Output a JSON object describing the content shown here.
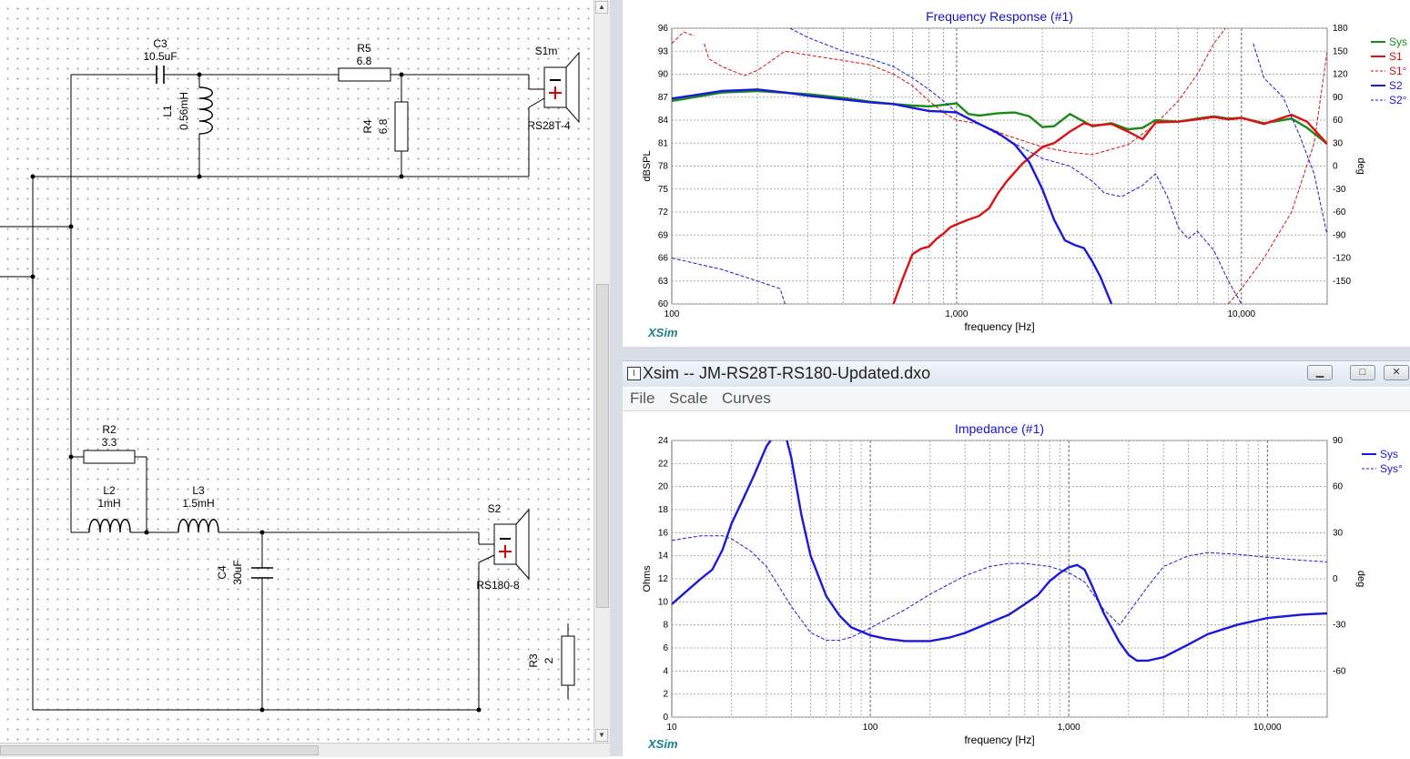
{
  "schematic": {
    "components": [
      {
        "ref": "C3",
        "value": "10.5uF"
      },
      {
        "ref": "L1",
        "value": "0.56mH"
      },
      {
        "ref": "R5",
        "value": "6.8"
      },
      {
        "ref": "R4",
        "value": "6.8"
      },
      {
        "ref": "S1m",
        "value": "RS28T-4"
      },
      {
        "ref": "R2",
        "value": "3.3"
      },
      {
        "ref": "L2",
        "value": "1mH"
      },
      {
        "ref": "L3",
        "value": "1.5mH"
      },
      {
        "ref": "C4",
        "value": "30uF"
      },
      {
        "ref": "S2",
        "value": "RS180-8"
      },
      {
        "ref": "R3",
        "value": "2"
      }
    ],
    "scroll_up_glyph": "▲",
    "scroll_down_glyph": "▼"
  },
  "frequency_window": {
    "title": "Frequency Response (#1)",
    "watermark": "XSim",
    "chart_data": {
      "type": "line",
      "title": "Frequency Response (#1)",
      "xlabel": "frequency [Hz]",
      "ylabel": "dBSPL",
      "y2label": "deg",
      "x_scale": "log",
      "xlim": [
        100,
        20000
      ],
      "ylim": [
        60,
        96
      ],
      "y2lim": [
        -180,
        180
      ],
      "x_tick_labels": [
        "100",
        "1,000",
        "10,000"
      ],
      "y_ticks": [
        60,
        63,
        66,
        69,
        72,
        75,
        78,
        81,
        84,
        87,
        90,
        93,
        96
      ],
      "y2_ticks": [
        -150,
        -120,
        -90,
        -60,
        -30,
        0,
        30,
        60,
        90,
        120,
        150,
        180
      ],
      "grid": true,
      "legend_position": "right",
      "series": [
        {
          "name": "Sys",
          "axis": "left",
          "color": "#1a8a1a",
          "style": "solid",
          "x": [
            100,
            150,
            200,
            300,
            400,
            500,
            600,
            700,
            800,
            900,
            1000,
            1100,
            1200,
            1400,
            1600,
            1800,
            2000,
            2200,
            2500,
            2800,
            3000,
            3500,
            4000,
            4500,
            5000,
            6000,
            7000,
            8000,
            9000,
            10000,
            12000,
            15000,
            17000,
            20000
          ],
          "y": [
            86.5,
            87.6,
            87.8,
            87.4,
            86.9,
            86.4,
            86.1,
            85.9,
            85.8,
            86.0,
            86.2,
            84.8,
            84.6,
            84.9,
            85.0,
            84.5,
            83.1,
            83.2,
            84.8,
            83.8,
            83.2,
            83.6,
            82.8,
            83.0,
            84.0,
            83.8,
            84.2,
            84.5,
            84.2,
            84.3,
            83.6,
            84.2,
            83.0,
            80.9
          ]
        },
        {
          "name": "S1",
          "axis": "left",
          "color": "#dd1111",
          "style": "solid",
          "x": [
            600,
            650,
            700,
            750,
            800,
            850,
            900,
            950,
            1000,
            1100,
            1200,
            1300,
            1400,
            1500,
            1700,
            1900,
            2000,
            2200,
            2500,
            2800,
            3000,
            3500,
            4000,
            4500,
            5000,
            6000,
            7000,
            8000,
            9000,
            10000,
            12000,
            15000,
            17000,
            20000
          ],
          "y": [
            60.0,
            63.5,
            66.5,
            67.2,
            67.5,
            68.5,
            69.2,
            70.0,
            70.4,
            71.0,
            71.5,
            72.5,
            74.5,
            76.0,
            78.3,
            79.8,
            80.5,
            81.0,
            82.5,
            83.6,
            83.3,
            83.5,
            82.5,
            81.5,
            83.7,
            83.8,
            84.1,
            84.4,
            84.1,
            84.3,
            83.5,
            84.7,
            83.8,
            80.9
          ]
        },
        {
          "name": "S1°",
          "axis": "right",
          "color": "#dd1111",
          "style": "dashed",
          "x": [
            100,
            110,
            120,
            125,
            130,
            135,
            150,
            180,
            200,
            250,
            300,
            400,
            500,
            600,
            700,
            800,
            900,
            1000,
            1200,
            1500,
            2000,
            2500,
            3000,
            4000,
            5000,
            6000,
            7000,
            8000,
            8800,
            9000,
            10000,
            12000,
            15000,
            18000,
            20000
          ],
          "y": [
            160,
            175,
            170,
            -180,
            160,
            140,
            130,
            118,
            125,
            150,
            145,
            138,
            132,
            120,
            105,
            85,
            70,
            60,
            55,
            40,
            25,
            18,
            15,
            28,
            55,
            85,
            120,
            160,
            180,
            -180,
            -160,
            -120,
            -60,
            30,
            150
          ]
        },
        {
          "name": "S2",
          "axis": "left",
          "color": "#1a1ad8",
          "style": "solid",
          "x": [
            100,
            150,
            200,
            250,
            300,
            400,
            500,
            600,
            700,
            800,
            900,
            1000,
            1200,
            1400,
            1600,
            1800,
            2000,
            2200,
            2400,
            2600,
            2800,
            3000,
            3200,
            3500
          ],
          "y": [
            86.8,
            87.8,
            88.0,
            87.6,
            87.2,
            86.7,
            86.3,
            86.1,
            85.6,
            85.2,
            85.1,
            85.0,
            83.5,
            82.3,
            80.8,
            78.5,
            75.0,
            71.0,
            68.3,
            67.7,
            67.3,
            65.5,
            63.5,
            60.0
          ]
        },
        {
          "name": "S2°",
          "axis": "right",
          "color": "#1a1ad8",
          "style": "dashed",
          "x": [
            100,
            150,
            200,
            240,
            250,
            260,
            300,
            400,
            500,
            600,
            700,
            800,
            900,
            1000,
            1200,
            1500,
            2000,
            2500,
            3000,
            3300,
            3800,
            4500,
            5000,
            5500,
            6000,
            6500,
            7000,
            8000,
            9000,
            10000,
            11000,
            12000,
            14000,
            16000,
            18000,
            20000
          ],
          "y": [
            -120,
            -135,
            -150,
            -160,
            -180,
            180,
            168,
            150,
            140,
            130,
            115,
            100,
            85,
            70,
            55,
            35,
            10,
            0,
            -20,
            -35,
            -40,
            -25,
            -10,
            -40,
            -80,
            -95,
            -85,
            -110,
            -150,
            -180,
            160,
            115,
            90,
            40,
            -10,
            -90
          ]
        }
      ]
    }
  },
  "impedance_window": {
    "window_title": "Xsim -- JM-RS28T-RS180-Updated.dxo",
    "app_icon": "xsim-app-icon",
    "menu": [
      "File",
      "Scale",
      "Curves"
    ],
    "controls": {
      "minimize": "▁",
      "maximize": "□",
      "close": "✕"
    },
    "title": "Impedance (#1)",
    "watermark": "XSim",
    "chart_data": {
      "type": "line",
      "title": "Impedance (#1)",
      "xlabel": "frequency [Hz]",
      "ylabel": "Ohms",
      "y2label": "deg",
      "x_scale": "log",
      "xlim": [
        10,
        20000
      ],
      "ylim": [
        0,
        24
      ],
      "y2lim": [
        -90,
        90
      ],
      "x_tick_labels": [
        "10",
        "100",
        "1,000",
        "10,000"
      ],
      "y_ticks": [
        0,
        2,
        4,
        6,
        8,
        10,
        12,
        14,
        16,
        18,
        20,
        22,
        24
      ],
      "y2_ticks": [
        -60,
        -30,
        0,
        30,
        60,
        90
      ],
      "grid": true,
      "legend_position": "right",
      "series": [
        {
          "name": "Sys",
          "axis": "left",
          "color": "#1a1ad8",
          "style": "solid",
          "x": [
            10,
            12,
            14,
            16,
            18,
            20,
            23,
            26,
            30,
            33,
            35,
            38,
            40,
            45,
            50,
            60,
            70,
            80,
            100,
            120,
            150,
            200,
            250,
            300,
            400,
            500,
            600,
            700,
            800,
            900,
            1000,
            1100,
            1200,
            1300,
            1500,
            1800,
            2000,
            2200,
            2500,
            3000,
            4000,
            5000,
            7000,
            10000,
            15000,
            20000
          ],
          "y": [
            9.8,
            11.0,
            12.0,
            12.8,
            14.5,
            16.8,
            19.0,
            21.0,
            23.5,
            24.5,
            24.5,
            24.0,
            22.5,
            17.5,
            14.0,
            10.5,
            8.8,
            7.8,
            7.1,
            6.8,
            6.6,
            6.6,
            6.9,
            7.3,
            8.2,
            8.9,
            9.8,
            10.6,
            11.8,
            12.5,
            13.0,
            13.2,
            12.8,
            11.5,
            9.0,
            6.5,
            5.4,
            4.9,
            4.9,
            5.2,
            6.3,
            7.2,
            8.0,
            8.6,
            8.9,
            9.0
          ]
        },
        {
          "name": "Sys°",
          "axis": "right",
          "color": "#1a1ad8",
          "style": "dashed",
          "x": [
            10,
            14,
            18,
            20,
            25,
            30,
            40,
            50,
            60,
            70,
            80,
            100,
            150,
            200,
            300,
            400,
            500,
            600,
            700,
            800,
            1000,
            1200,
            1500,
            1800,
            2000,
            2500,
            3000,
            4000,
            5000,
            7000,
            10000,
            15000,
            20000
          ],
          "y": [
            25,
            28,
            28,
            26,
            18,
            8,
            -18,
            -35,
            -40,
            -40,
            -38,
            -32,
            -20,
            -10,
            2,
            8,
            10,
            10,
            9,
            8,
            4,
            -2,
            -20,
            -30,
            -22,
            -5,
            8,
            15,
            17,
            16,
            14,
            12,
            11
          ]
        }
      ]
    }
  }
}
